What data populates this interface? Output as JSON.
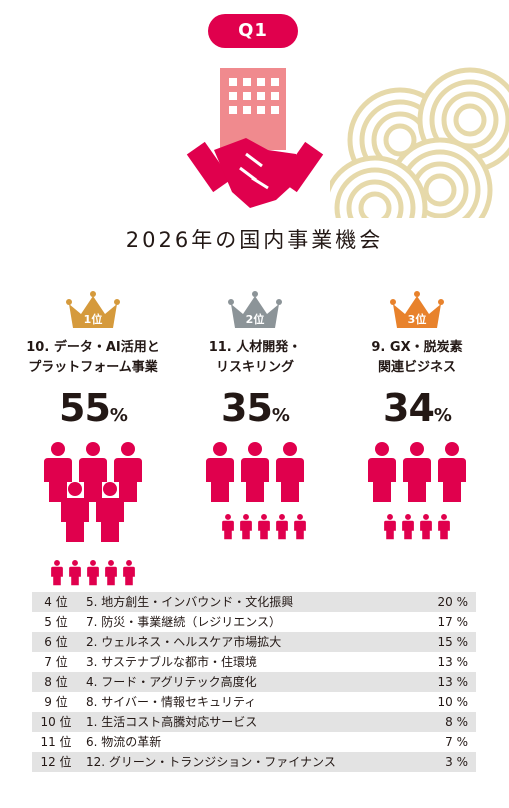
{
  "badge": "Q1",
  "title": "2026年の国内事業機会",
  "chart_data": {
    "type": "table",
    "unit": "%",
    "top3": [
      {
        "rank_label": "1位",
        "category": "10. データ・AI活用と\nプラットフォーム事業",
        "value": 55,
        "crown_color": "#d59a3c"
      },
      {
        "rank_label": "2位",
        "category": "11. 人材開発・\nリスキリング",
        "value": 35,
        "crown_color": "#8c9498"
      },
      {
        "rank_label": "3位",
        "category": "9. GX・脱炭素\n関連ビジネス",
        "value": 34,
        "crown_color": "#e8822c"
      }
    ],
    "rows": [
      {
        "rank": "4 位",
        "name": "5. 地方創生・インバウンド・文化振興",
        "value": 20
      },
      {
        "rank": "5 位",
        "name": "7. 防災・事業継続（レジリエンス）",
        "value": 17
      },
      {
        "rank": "6 位",
        "name": "2. ウェルネス・ヘルスケア市場拡大",
        "value": 15
      },
      {
        "rank": "7 位",
        "name": "3. サステナブルな都市・住環境",
        "value": 13
      },
      {
        "rank": "8 位",
        "name": "4. フード・アグリテック高度化",
        "value": 13
      },
      {
        "rank": "9 位",
        "name": "8. サイバー・情報セキュリティ",
        "value": 10
      },
      {
        "rank": "10 位",
        "name": "1. 生活コスト高騰対応サービス",
        "value": 8
      },
      {
        "rank": "11 位",
        "name": "6. 物流の革新",
        "value": 7
      },
      {
        "rank": "12 位",
        "name": "12. グリーン・トランジション・ファイナンス",
        "value": 3
      }
    ]
  },
  "colors": {
    "accent": "#e0004d",
    "building": "#f08a8e",
    "wave": "#e6d9aa",
    "row_shade": "#e3e3e3"
  }
}
